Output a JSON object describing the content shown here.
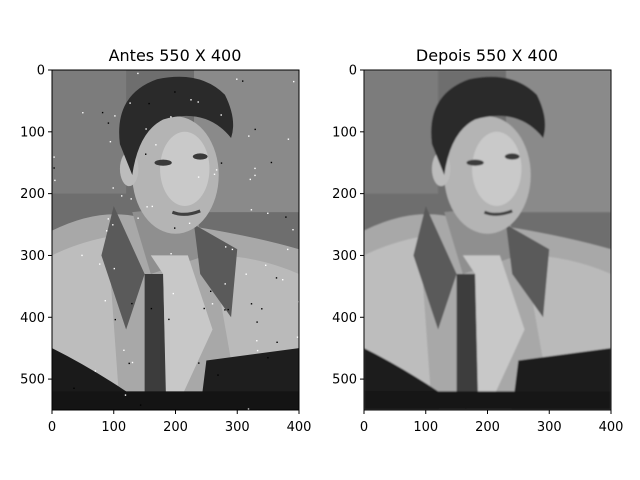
{
  "chart_data": [
    {
      "type": "image",
      "title": "Antes 550 X 400",
      "xlim": [
        0,
        400
      ],
      "ylim": [
        550,
        0
      ],
      "xticks": [
        0,
        100,
        200,
        300,
        400
      ],
      "yticks": [
        0,
        100,
        200,
        300,
        400,
        500
      ],
      "colormap": "gray",
      "image_content": "grayscale portrait photograph of a man in a jacket, noisy with speckles",
      "noise": true
    },
    {
      "type": "image",
      "title": "Depois 550 X 400",
      "xlim": [
        0,
        400
      ],
      "ylim": [
        550,
        0
      ],
      "xticks": [
        0,
        100,
        200,
        300,
        400
      ],
      "yticks": [
        0,
        100,
        200,
        300,
        400,
        500
      ],
      "colormap": "gray",
      "image_content": "grayscale portrait photograph of a man in a jacket, denoised/smoothed",
      "noise": false
    }
  ]
}
